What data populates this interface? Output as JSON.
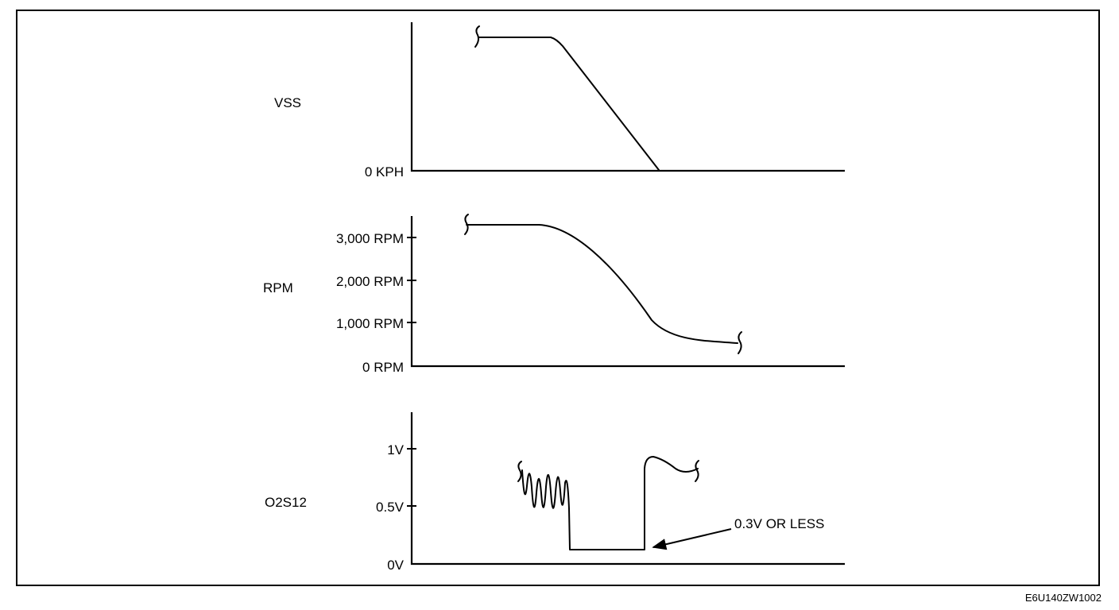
{
  "panels": {
    "vss": {
      "label": "VSS",
      "ticks": [
        "0 KPH"
      ]
    },
    "rpm": {
      "label": "RPM",
      "ticks": [
        "3,000 RPM",
        "2,000 RPM",
        "1,000 RPM",
        "0 RPM"
      ]
    },
    "o2s": {
      "label": "O2S12",
      "ticks": [
        "1V",
        "0.5V",
        "0V"
      ],
      "callout": "0.3V OR LESS"
    }
  },
  "figure_code": "E6U140ZW1002"
}
